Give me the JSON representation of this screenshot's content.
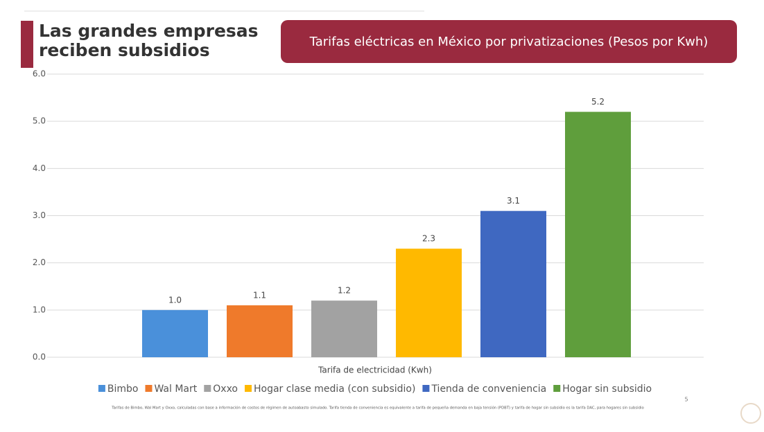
{
  "slide_title": "Las grandes empresas reciben subsidios",
  "footnote": "Tarifas de Bimbo, Wal Mart y Oxxo, calculadas con base a información de costos de régimen de autoabasto simulado. Tarifa tienda de conveniencia es equivalente a tarifa de pequeña demanda en baja tensión (PDBT) y tarifa de hogar sin subsidio es la tarifa DAC, para hogares sin subsidio",
  "page_number": "5",
  "chart_data": {
    "type": "bar",
    "title": "Tarifas eléctricas en México por privatizaciones (Pesos por Kwh)",
    "x_label": "Tarifa de electricidad (Kwh)",
    "series": [
      {
        "name": "Bimbo",
        "color": "#4a90da",
        "values": [
          1.0
        ],
        "value_labels": [
          "1.0"
        ]
      },
      {
        "name": "Wal Mart",
        "color": "#ef7a2b",
        "values": [
          1.1
        ],
        "value_labels": [
          "1.1"
        ]
      },
      {
        "name": "Oxxo",
        "color": "#a2a2a2",
        "values": [
          1.2
        ],
        "value_labels": [
          "1.2"
        ]
      },
      {
        "name": "Hogar clase media (con subsidio)",
        "color": "#ffb900",
        "values": [
          2.3
        ],
        "value_labels": [
          "2.3"
        ]
      },
      {
        "name": "Tienda de conveniencia",
        "color": "#3f68c1",
        "values": [
          3.1
        ],
        "value_labels": [
          "3.1"
        ]
      },
      {
        "name": "Hogar sin subsidio",
        "color": "#5f9e3c",
        "values": [
          5.2
        ],
        "value_labels": [
          "5.2"
        ]
      }
    ],
    "ylim": [
      0,
      6
    ],
    "yticks": [
      {
        "value": 0,
        "label": "0.0"
      },
      {
        "value": 1,
        "label": "1.0"
      },
      {
        "value": 2,
        "label": "2.0"
      },
      {
        "value": 3,
        "label": "3.0"
      },
      {
        "value": 4,
        "label": "4.0"
      },
      {
        "value": 5,
        "label": "5.0"
      },
      {
        "value": 6,
        "label": "6.0"
      }
    ],
    "grid": true
  }
}
